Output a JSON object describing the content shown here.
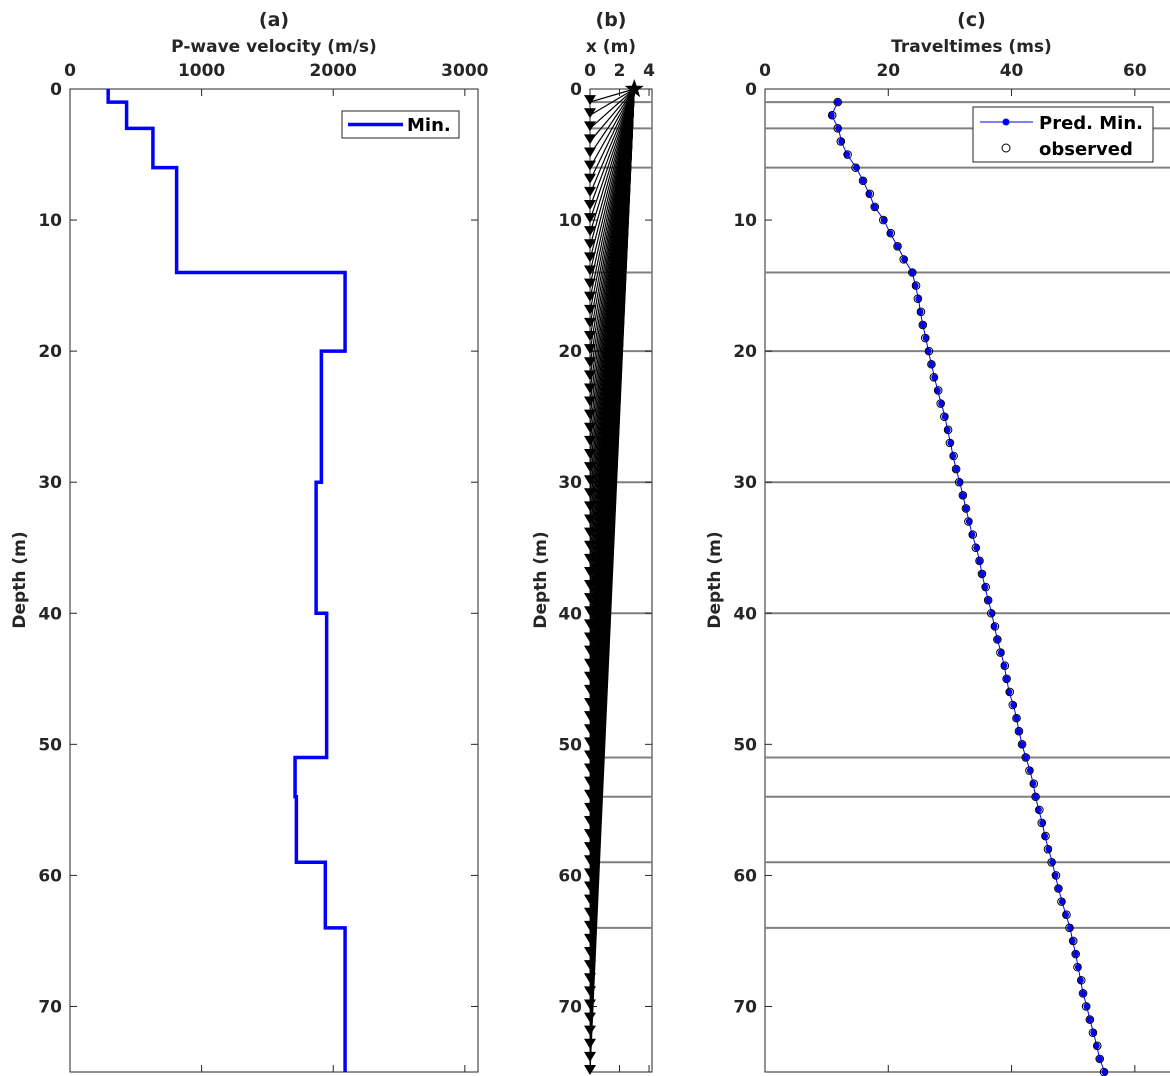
{
  "figure": {
    "shared_ylabel": "Depth (m)",
    "colors": {
      "velocity": "#0000ff",
      "predicted": "#0000ff",
      "observed_edge": "#000000",
      "interfaces": "#808080",
      "rays": "#000000"
    }
  },
  "chart_data": [
    {
      "id": "a",
      "type": "line",
      "title": "(a)",
      "xlabel": "P-wave velocity (m/s)",
      "ylabel": "Depth (m)",
      "xlim": [
        0,
        3100
      ],
      "ylim": [
        0,
        75
      ],
      "y_reversed": true,
      "x_axis_position": "top",
      "xticks": [
        0,
        1000,
        2000,
        3000
      ],
      "yticks": [
        0,
        10,
        20,
        30,
        40,
        50,
        60,
        70
      ],
      "legend": {
        "position": "top-right",
        "entries": [
          "Min."
        ]
      },
      "series": [
        {
          "name": "Min.",
          "step_profile": [
            {
              "top": 0,
              "bottom": 1,
              "velocity": 290
            },
            {
              "top": 1,
              "bottom": 3,
              "velocity": 430
            },
            {
              "top": 3,
              "bottom": 6,
              "velocity": 630
            },
            {
              "top": 6,
              "bottom": 14,
              "velocity": 810
            },
            {
              "top": 14,
              "bottom": 20,
              "velocity": 2090
            },
            {
              "top": 20,
              "bottom": 30,
              "velocity": 1910
            },
            {
              "top": 30,
              "bottom": 40,
              "velocity": 1870
            },
            {
              "top": 40,
              "bottom": 51,
              "velocity": 1950
            },
            {
              "top": 51,
              "bottom": 54,
              "velocity": 1710
            },
            {
              "top": 54,
              "bottom": 59,
              "velocity": 1720
            },
            {
              "top": 59,
              "bottom": 64,
              "velocity": 1940
            },
            {
              "top": 64,
              "bottom": 75,
              "velocity": 2090
            }
          ]
        }
      ]
    },
    {
      "id": "b",
      "type": "scatter",
      "title": "(b)",
      "xlabel": "x (m)",
      "ylabel": "Depth (m)",
      "xlim": [
        0,
        4.2
      ],
      "ylim": [
        0,
        75
      ],
      "y_reversed": true,
      "x_axis_position": "top",
      "xticks": [
        0,
        2,
        4
      ],
      "yticks": [
        0,
        10,
        20,
        30,
        40,
        50,
        60,
        70
      ],
      "source": {
        "x": 3,
        "depth": 0
      },
      "receivers": {
        "x": 0,
        "depth_start": 1,
        "depth_end": 75,
        "spacing": 1
      },
      "interface_depths": [
        1,
        3,
        6,
        14,
        20,
        30,
        40,
        51,
        54,
        59,
        64
      ]
    },
    {
      "id": "c",
      "type": "scatter",
      "title": "(c)",
      "xlabel": "Traveltimes (ms)",
      "ylabel": "Depth (m)",
      "xlim": [
        0,
        67
      ],
      "ylim": [
        0,
        75
      ],
      "y_reversed": true,
      "x_axis_position": "top",
      "xticks": [
        0,
        20,
        40,
        60
      ],
      "yticks": [
        0,
        10,
        20,
        30,
        40,
        50,
        60,
        70
      ],
      "legend": {
        "position": "top-right",
        "entries": [
          "Pred. Min.",
          "observed"
        ]
      },
      "interface_depths": [
        1,
        3,
        6,
        14,
        20,
        30,
        40,
        51,
        54,
        59,
        64
      ],
      "series": [
        {
          "name": "Pred. Min.",
          "depth": [
            1,
            2,
            3,
            4,
            5,
            6,
            7,
            8,
            9,
            10,
            11,
            12,
            13,
            14,
            15,
            16,
            17,
            18,
            19,
            20,
            21,
            22,
            23,
            24,
            25,
            26,
            27,
            28,
            29,
            30,
            31,
            32,
            33,
            34,
            35,
            36,
            37,
            38,
            39,
            40,
            41,
            42,
            43,
            44,
            45,
            46,
            47,
            48,
            49,
            50,
            51,
            52,
            53,
            54,
            55,
            56,
            57,
            58,
            59,
            60,
            61,
            62,
            63,
            64,
            65,
            66,
            67,
            68,
            69,
            70,
            71,
            72,
            73,
            74,
            75
          ],
          "values": [
            11.8,
            10.8,
            11.9,
            12.4,
            13.3,
            14.8,
            15.9,
            16.9,
            17.8,
            19.3,
            20.3,
            21.5,
            22.6,
            23.9,
            24.4,
            24.9,
            25.2,
            25.6,
            26.1,
            26.5,
            27.0,
            27.5,
            28.0,
            28.6,
            29.2,
            29.6,
            30.1,
            30.5,
            31.0,
            31.6,
            32.1,
            32.6,
            33.1,
            33.6,
            34.3,
            34.8,
            35.2,
            35.7,
            36.2,
            36.8,
            37.2,
            37.7,
            38.3,
            38.8,
            39.2,
            39.6,
            40.3,
            40.8,
            41.2,
            41.7,
            42.3,
            43.0,
            43.5,
            43.9,
            44.4,
            45.0,
            45.4,
            46.0,
            46.6,
            47.1,
            47.6,
            48.2,
            48.8,
            49.5,
            49.9,
            50.4,
            50.8,
            51.2,
            51.6,
            52.2,
            52.7,
            53.3,
            53.8,
            54.3,
            55.1
          ]
        },
        {
          "name": "observed",
          "depth": [
            1,
            2,
            3,
            4,
            5,
            6,
            7,
            8,
            9,
            10,
            11,
            12,
            13,
            14,
            15,
            16,
            17,
            18,
            19,
            20,
            21,
            22,
            23,
            24,
            25,
            26,
            27,
            28,
            29,
            30,
            31,
            32,
            33,
            34,
            35,
            36,
            37,
            38,
            39,
            40,
            41,
            42,
            43,
            44,
            45,
            46,
            47,
            48,
            49,
            50,
            51,
            52,
            53,
            54,
            55,
            56,
            57,
            58,
            59,
            60,
            61,
            62,
            63,
            64,
            65,
            66,
            67,
            68,
            69,
            70,
            71,
            72,
            73,
            74,
            75
          ],
          "values": [
            11.8,
            10.9,
            11.8,
            12.3,
            13.4,
            14.7,
            15.9,
            17.0,
            17.8,
            19.2,
            20.4,
            21.5,
            22.5,
            23.9,
            24.5,
            24.8,
            25.3,
            25.6,
            26.0,
            26.6,
            27.0,
            27.4,
            28.1,
            28.5,
            29.1,
            29.7,
            30.0,
            30.6,
            31.0,
            31.5,
            32.1,
            32.6,
            33.0,
            33.7,
            34.2,
            34.8,
            35.2,
            35.8,
            36.2,
            36.7,
            37.3,
            37.7,
            38.2,
            38.9,
            39.2,
            39.7,
            40.2,
            40.8,
            41.2,
            41.7,
            42.3,
            42.9,
            43.6,
            43.9,
            44.5,
            44.9,
            45.5,
            45.9,
            46.5,
            47.2,
            47.6,
            48.1,
            48.9,
            49.4,
            50.0,
            50.4,
            50.7,
            51.3,
            51.6,
            52.1,
            52.7,
            53.2,
            53.9,
            54.3,
            55.0
          ]
        }
      ]
    }
  ]
}
